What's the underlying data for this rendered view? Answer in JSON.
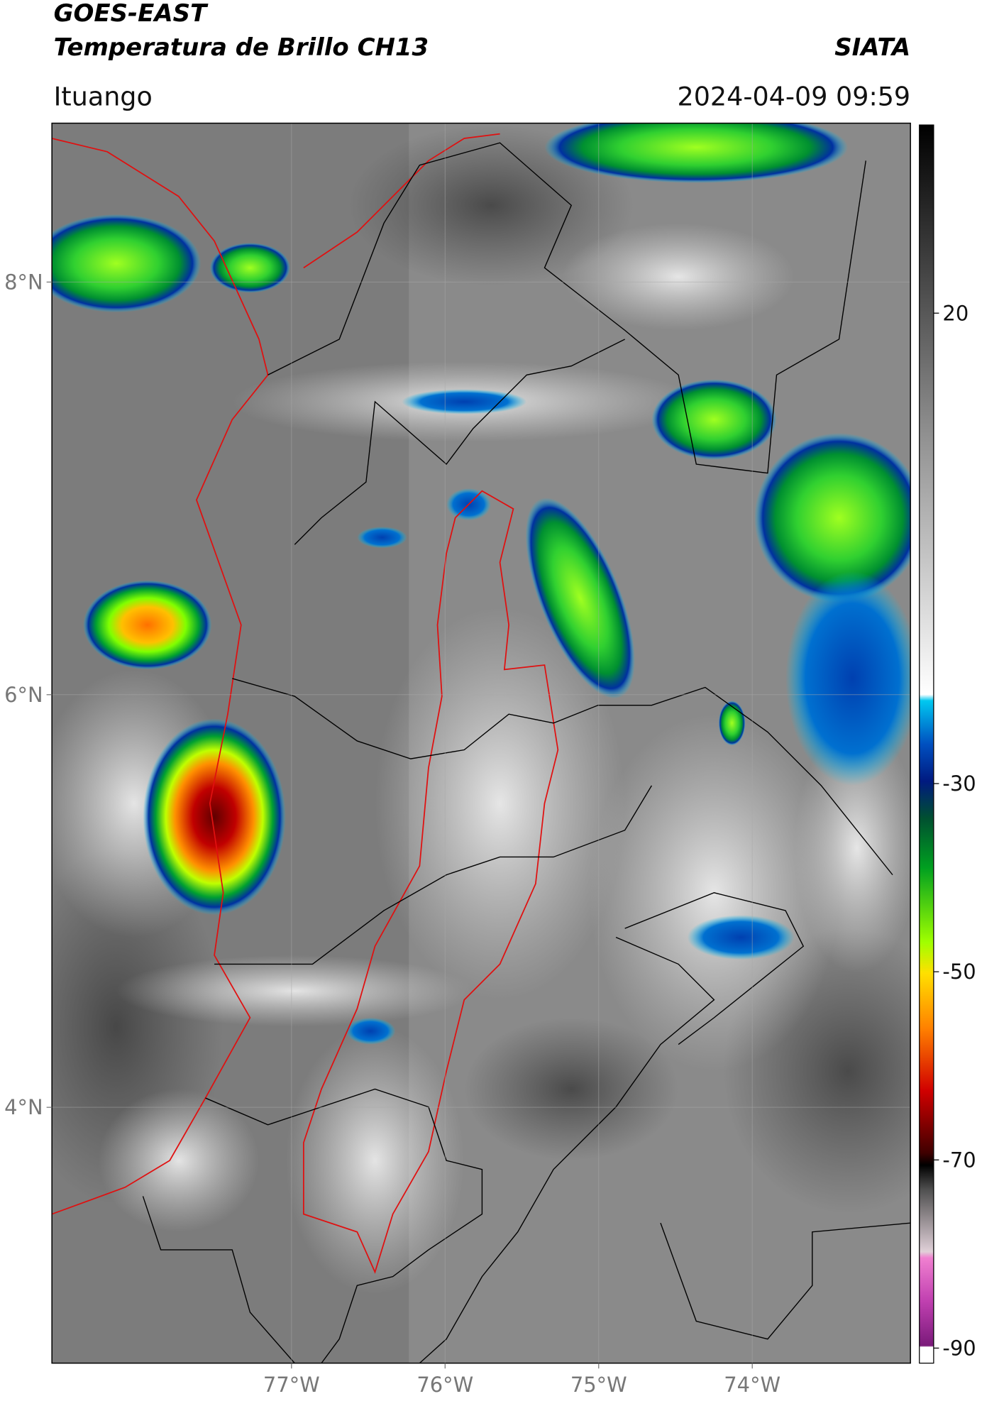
{
  "header": {
    "title_line1": "GOES-EAST",
    "title_line2": "Temperatura de Brillo CH13",
    "organization": "SIATA",
    "location": "Ituango",
    "datetime": "2024-04-09 09:59"
  },
  "map": {
    "xlim": [
      -78.56,
      -72.97
    ],
    "ylim": [
      2.76,
      8.77
    ],
    "xticks": [
      {
        "value": -77,
        "label": "77°W"
      },
      {
        "value": -76,
        "label": "76°W"
      },
      {
        "value": -75,
        "label": "75°W"
      },
      {
        "value": -74,
        "label": "74°W"
      }
    ],
    "yticks": [
      {
        "value": 8,
        "label": "8°N"
      },
      {
        "value": 6,
        "label": "6°N"
      },
      {
        "value": 4,
        "label": "4°N"
      }
    ],
    "grid": true
  },
  "colorbar": {
    "clim": [
      -91.6,
      40
    ],
    "ticks": [
      20,
      -30,
      -50,
      -70,
      -90
    ]
  }
}
